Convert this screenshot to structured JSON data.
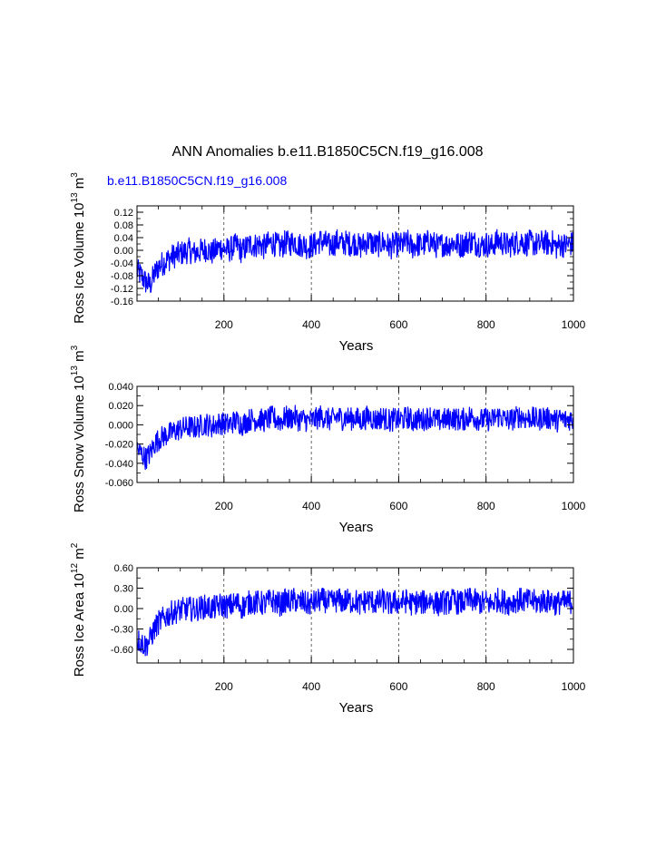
{
  "title": "ANN Anomalies b.e11.B1850C5CN.f19_g16.008",
  "case_label": "b.e11.B1850C5CN.f19_g16.008",
  "colors": {
    "series": "#0000ff",
    "case_label": "#0000ff",
    "axis": "#000000",
    "grid": "#000000"
  },
  "chart_data": [
    {
      "type": "line",
      "name": "ross-ice-volume",
      "title": "",
      "ylabel": {
        "main": "Ross Ice Volume 10",
        "sup": "13",
        "unit": "m",
        "unit_sup": "3"
      },
      "xlabel": "Years",
      "xlim": [
        1,
        1000
      ],
      "ylim": [
        -0.16,
        0.14
      ],
      "xticks": [
        200,
        400,
        600,
        800,
        1000
      ],
      "xtick_labels": [
        "200",
        "400",
        "600",
        "800",
        "1000"
      ],
      "yticks": [
        -0.16,
        -0.12,
        -0.08,
        -0.04,
        0.0,
        0.04,
        0.08,
        0.12
      ],
      "ytick_labels": [
        "-0.16",
        "-0.12",
        "-0.08",
        "-0.04",
        "0.00",
        "0.04",
        "0.08",
        "0.12"
      ],
      "grid": "x-dashed",
      "series": {
        "name": "b.e11.B1850C5CN.f19_g16.008",
        "x_step": 10,
        "start_year": 1,
        "values": [
          -0.065,
          -0.08,
          -0.1,
          -0.11,
          -0.075,
          -0.05,
          -0.04,
          -0.03,
          -0.02,
          -0.015,
          -0.01,
          -0.005,
          0.0,
          -0.01,
          -0.005,
          0.0,
          0.005,
          -0.01,
          0.0,
          0.01,
          0.005,
          0.0,
          0.01,
          0.015,
          -0.005,
          0.01,
          0.02,
          0.015,
          0.02,
          0.01,
          0.02,
          0.025,
          0.015,
          0.01,
          0.025,
          0.02,
          0.03,
          0.015,
          0.02,
          0.01,
          0.015,
          0.02,
          0.03,
          0.025,
          0.015,
          0.02,
          0.03,
          0.02,
          0.025,
          0.02,
          0.025,
          0.01,
          0.02,
          0.03,
          0.02,
          0.015,
          0.025,
          0.02,
          0.01,
          0.02,
          0.015,
          0.02,
          0.025,
          0.01,
          0.02,
          0.015,
          0.02,
          0.03,
          0.02,
          0.01,
          0.02,
          0.015,
          0.025,
          0.02,
          0.015,
          0.02,
          0.03,
          0.025,
          0.02,
          0.015,
          0.02,
          0.01,
          0.025,
          0.03,
          0.02,
          0.015,
          0.02,
          0.025,
          0.03,
          0.02,
          0.025,
          0.02,
          0.015,
          0.03,
          0.02,
          0.025,
          0.01,
          0.02,
          0.015,
          0.02
        ],
        "noise_amplitude": 0.04
      }
    },
    {
      "type": "line",
      "name": "ross-snow-volume",
      "title": "",
      "ylabel": {
        "main": "Ross Snow Volume 10",
        "sup": "13",
        "unit": "m",
        "unit_sup": "3"
      },
      "xlabel": "Years",
      "xlim": [
        1,
        1000
      ],
      "ylim": [
        -0.06,
        0.04
      ],
      "xticks": [
        200,
        400,
        600,
        800,
        1000
      ],
      "xtick_labels": [
        "200",
        "400",
        "600",
        "800",
        "1000"
      ],
      "yticks": [
        -0.06,
        -0.04,
        -0.02,
        0.0,
        0.02,
        0.04
      ],
      "ytick_labels": [
        "-0.060",
        "-0.040",
        "-0.020",
        "0.000",
        "0.020",
        "0.040"
      ],
      "grid": "x-dashed",
      "series": {
        "name": "b.e11.B1850C5CN.f19_g16.008",
        "x_step": 10,
        "start_year": 1,
        "values": [
          -0.025,
          -0.03,
          -0.035,
          -0.03,
          -0.02,
          -0.015,
          -0.012,
          -0.01,
          -0.008,
          -0.006,
          -0.004,
          -0.003,
          -0.002,
          -0.003,
          -0.002,
          0.0,
          0.001,
          -0.002,
          0.0,
          0.002,
          0.001,
          0.0,
          0.003,
          0.004,
          0.0,
          0.003,
          0.006,
          0.005,
          0.006,
          0.004,
          0.006,
          0.008,
          0.005,
          0.004,
          0.008,
          0.006,
          0.009,
          0.005,
          0.006,
          0.004,
          0.005,
          0.006,
          0.009,
          0.008,
          0.005,
          0.006,
          0.009,
          0.006,
          0.008,
          0.006,
          0.008,
          0.004,
          0.006,
          0.009,
          0.006,
          0.005,
          0.008,
          0.006,
          0.004,
          0.006,
          0.005,
          0.006,
          0.008,
          0.004,
          0.006,
          0.005,
          0.006,
          0.009,
          0.006,
          0.004,
          0.006,
          0.005,
          0.008,
          0.006,
          0.005,
          0.006,
          0.009,
          0.008,
          0.006,
          0.005,
          0.006,
          0.004,
          0.008,
          0.009,
          0.006,
          0.005,
          0.006,
          0.008,
          0.009,
          0.006,
          0.008,
          0.006,
          0.005,
          0.009,
          0.006,
          0.008,
          0.004,
          0.006,
          0.005,
          0.006
        ],
        "noise_amplitude": 0.012
      }
    },
    {
      "type": "line",
      "name": "ross-ice-area",
      "title": "",
      "ylabel": {
        "main": "Ross Ice Area 10",
        "sup": "12",
        "unit": "m",
        "unit_sup": "2"
      },
      "xlabel": "Years",
      "xlim": [
        1,
        1000
      ],
      "ylim": [
        -0.8,
        0.6
      ],
      "xticks": [
        200,
        400,
        600,
        800,
        1000
      ],
      "xtick_labels": [
        "200",
        "400",
        "600",
        "800",
        "1000"
      ],
      "yticks": [
        -0.6,
        -0.3,
        0.0,
        0.3,
        0.6
      ],
      "ytick_labels": [
        "-0.60",
        "-0.30",
        "0.00",
        "0.30",
        "0.60"
      ],
      "grid": "x-dashed",
      "series": {
        "name": "b.e11.B1850C5CN.f19_g16.008",
        "x_step": 10,
        "start_year": 1,
        "values": [
          -0.45,
          -0.5,
          -0.55,
          -0.45,
          -0.3,
          -0.2,
          -0.15,
          -0.1,
          -0.06,
          -0.04,
          -0.02,
          -0.01,
          0.0,
          -0.02,
          0.0,
          0.02,
          0.03,
          0.0,
          0.02,
          0.05,
          0.04,
          0.03,
          0.06,
          0.08,
          0.02,
          0.06,
          0.1,
          0.08,
          0.1,
          0.06,
          0.1,
          0.12,
          0.08,
          0.06,
          0.12,
          0.1,
          0.13,
          0.08,
          0.1,
          0.06,
          0.08,
          0.1,
          0.13,
          0.12,
          0.08,
          0.1,
          0.13,
          0.1,
          0.12,
          0.1,
          0.12,
          0.06,
          0.1,
          0.13,
          0.1,
          0.08,
          0.12,
          0.1,
          0.06,
          0.1,
          0.08,
          0.1,
          0.12,
          0.06,
          0.1,
          0.08,
          0.1,
          0.13,
          0.1,
          0.06,
          0.1,
          0.08,
          0.12,
          0.1,
          0.08,
          0.1,
          0.13,
          0.12,
          0.1,
          0.08,
          0.1,
          0.06,
          0.12,
          0.13,
          0.1,
          0.08,
          0.1,
          0.12,
          0.13,
          0.1,
          0.12,
          0.1,
          0.08,
          0.13,
          0.1,
          0.12,
          0.06,
          0.1,
          0.08,
          0.1
        ],
        "noise_amplitude": 0.18
      }
    }
  ]
}
